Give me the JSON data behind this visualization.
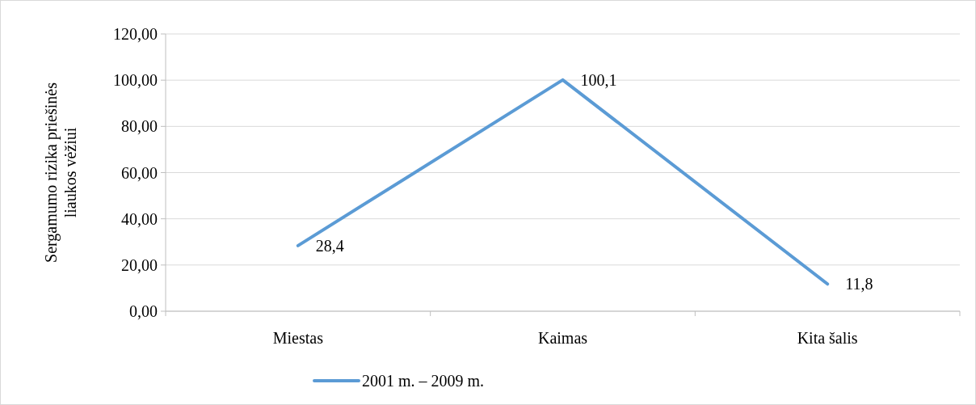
{
  "chart_data": {
    "type": "line",
    "ylabel": "Sergamumo rizika priešinės liaukos vėžiui",
    "categories": [
      "Miestas",
      "Kaimas",
      "Kita šalis"
    ],
    "series": [
      {
        "name": "2001 m. – 2009 m.",
        "color": "#5b9bd5",
        "values": [
          28.4,
          100.1,
          11.8
        ],
        "value_labels": [
          "28,4",
          "100,1",
          "11,8"
        ]
      }
    ],
    "ylim": [
      0,
      120
    ],
    "yticks": [
      {
        "value": 0,
        "label": "0,00"
      },
      {
        "value": 20,
        "label": "20,00"
      },
      {
        "value": 40,
        "label": "40,00"
      },
      {
        "value": 60,
        "label": "60,00"
      },
      {
        "value": 80,
        "label": "80,00"
      },
      {
        "value": 100,
        "label": "100,00"
      },
      {
        "value": 120,
        "label": "120,00"
      }
    ],
    "grid": "y",
    "legend": "bottom",
    "marker": "none",
    "line_style": "solid"
  }
}
